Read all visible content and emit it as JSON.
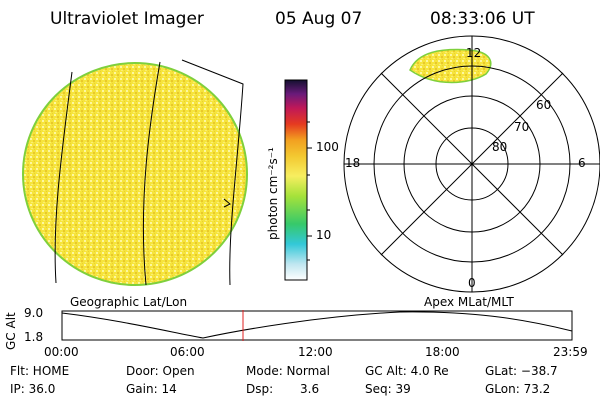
{
  "header": {
    "instrument": "Ultraviolet Imager",
    "date": "05 Aug 07",
    "time": "08:33:06 UT"
  },
  "colorbar": {
    "label": "photon cm⁻²s⁻¹",
    "ticks": [
      "100",
      "10"
    ],
    "scale": "log"
  },
  "geo_panel": {
    "label": "Geographic Lat/Lon"
  },
  "polar_panel": {
    "label": "Apex MLat/MLT",
    "mlt_labels": [
      "12",
      "18",
      "6",
      "0"
    ],
    "mlat_labels": [
      "60",
      "70",
      "80"
    ]
  },
  "timeline": {
    "axis_title": "GC Alt",
    "y_ticks": [
      "9.0",
      "1.8"
    ],
    "x_ticks": [
      "00:00",
      "06:00",
      "12:00",
      "18:00",
      "23:59"
    ],
    "current_time": "08:33",
    "altitude_min": 1.8,
    "altitude_max": 9.0
  },
  "status": {
    "flt": "Flt: HOME",
    "door": "Door: Open",
    "mode": "Mode: Normal",
    "gc_alt": "GC Alt: 4.0 Re",
    "glat": "GLat: −38.7",
    "ip": "IP: 36.0",
    "gain": "Gain: 14",
    "dsp_label": "Dsp:",
    "dsp_value": "3.6",
    "seq": "Seq: 39",
    "glon": "GLon:  73.2"
  },
  "colors": {
    "disk_fill": "#f5e23a",
    "disk_edge": "#7fd03c",
    "timeline_marker": "#e02020"
  }
}
